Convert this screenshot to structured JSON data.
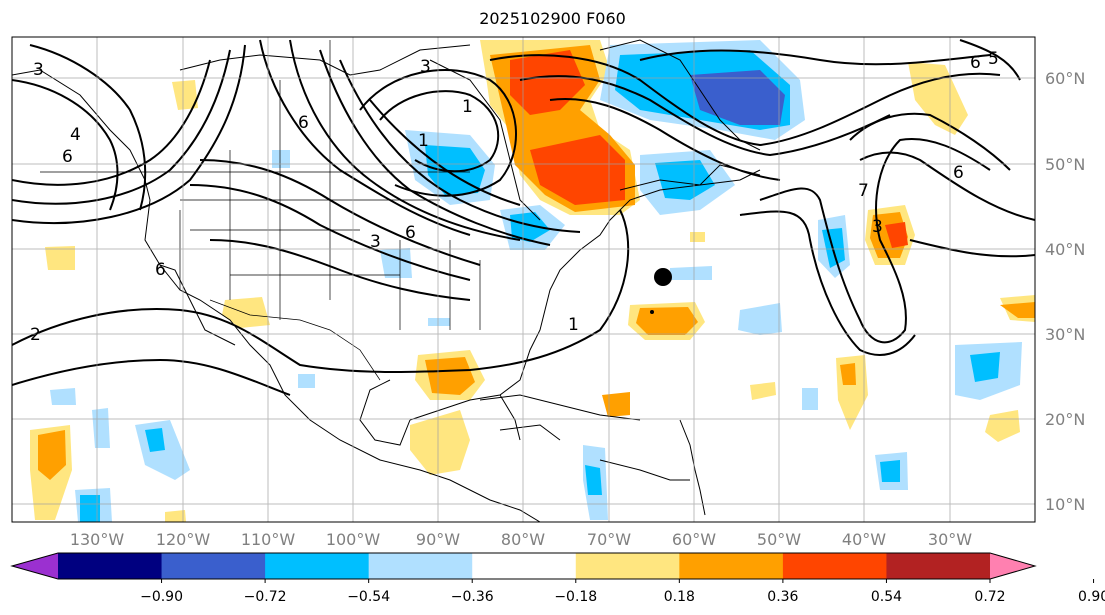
{
  "title": "2025102900 F060",
  "lat_labels": [
    "60°N",
    "50°N",
    "40°N",
    "30°N",
    "20°N",
    "10°N"
  ],
  "lon_labels": [
    "130°W",
    "120°W",
    "110°W",
    "100°W",
    "90°W",
    "80°W",
    "70°W",
    "60°W",
    "50°W",
    "40°W",
    "30°W"
  ],
  "colorbar": {
    "ticks": [
      "−0.90",
      "−0.72",
      "−0.54",
      "−0.36",
      "−0.18",
      "0.18",
      "0.36",
      "0.54",
      "0.72",
      "0.90"
    ],
    "colors": [
      "#9b30d0",
      "#000080",
      "#3a5fcd",
      "#00bfff",
      "#b0e0ff",
      "#ffffff",
      "#ffe680",
      "#ffa000",
      "#ff4500",
      "#b22222",
      "#ff80b0"
    ]
  },
  "contour_labels": [
    "3",
    "6",
    "6",
    "1",
    "1",
    "3",
    "6",
    "2",
    "6",
    "5",
    "4",
    "1",
    "7",
    "3",
    "6",
    "3",
    "6"
  ],
  "marker": "black-dot"
}
